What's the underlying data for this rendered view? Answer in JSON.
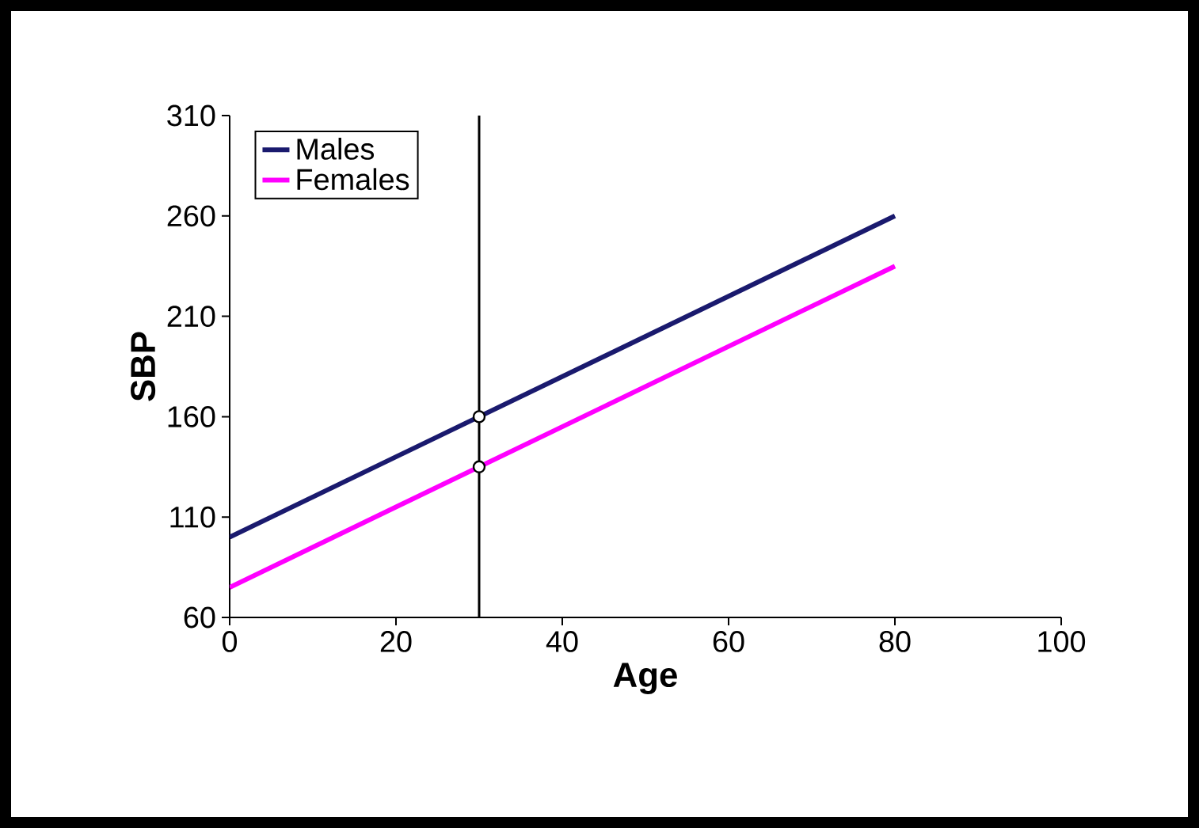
{
  "chart_data": {
    "type": "line",
    "xlabel": "Age",
    "ylabel": "SBP",
    "xlim": [
      0,
      100
    ],
    "ylim": [
      60,
      310
    ],
    "xticks": [
      0,
      20,
      40,
      60,
      80,
      100
    ],
    "yticks": [
      60,
      110,
      160,
      210,
      260,
      310
    ],
    "grid": false,
    "legend": "top left",
    "line_style": "solid",
    "series": [
      {
        "name": "Males",
        "color": "#1a1a6e",
        "x": [
          0,
          80
        ],
        "values": [
          100,
          260
        ]
      },
      {
        "name": "Females",
        "color": "#ff00ff",
        "x": [
          0,
          80
        ],
        "values": [
          75,
          235
        ]
      },
      {
        "type": "scatter",
        "marker": "circle",
        "color": "#000000",
        "x": [
          30,
          30
        ],
        "values": [
          160,
          135
        ]
      }
    ],
    "ref_lines": [
      {
        "axis": "x",
        "value": 30,
        "color": "#000000"
      }
    ]
  }
}
